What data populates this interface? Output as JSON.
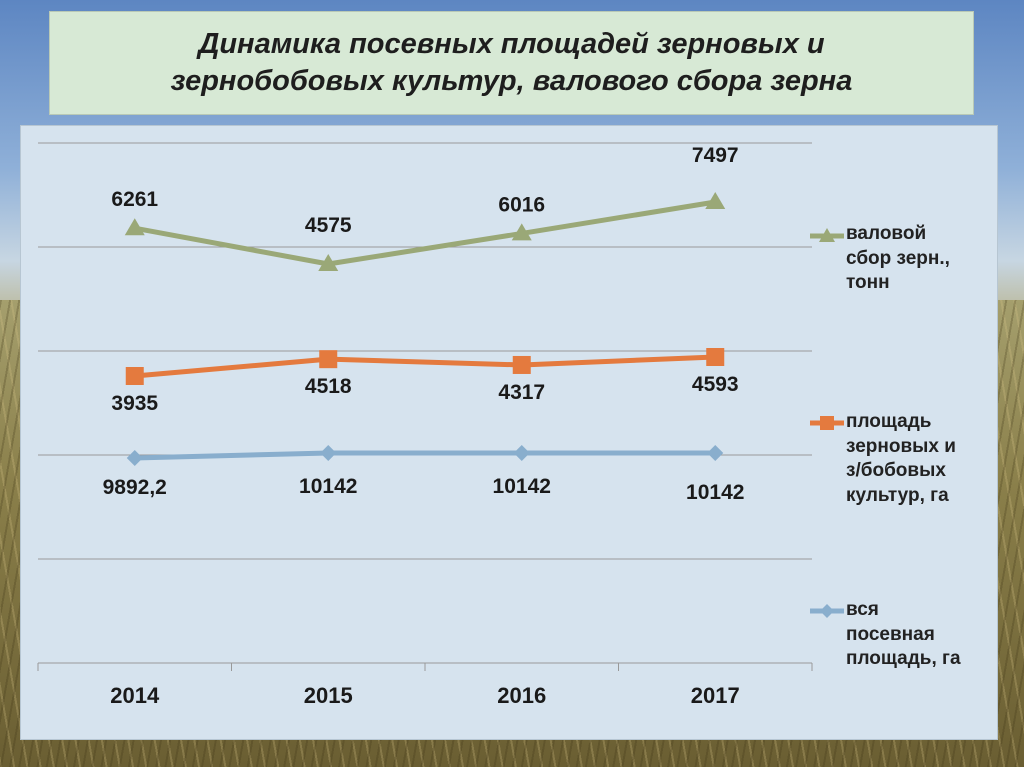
{
  "title": "Динамика посевных площадей зерновых и зернобобовых культур, валового сбора зерна",
  "colors": {
    "harvest": "#9aa877",
    "grain_area": "#e47a3e",
    "total_area": "#89aecd",
    "grid": "#999999",
    "panel": "#d6e3ee",
    "title_box": "#d7e9d5"
  },
  "chart_data": {
    "type": "line",
    "categories": [
      "2014",
      "2015",
      "2016",
      "2017"
    ],
    "grid": true,
    "legend_position": "right",
    "series": [
      {
        "name": "валовой сбор зерн., тонн",
        "marker": "triangle",
        "values": [
          6261,
          4575,
          6016,
          7497
        ],
        "labels": [
          "6261",
          "4575",
          "6016",
          "7497"
        ]
      },
      {
        "name": "площадь зерновых и з/бобовых культур, га",
        "marker": "square",
        "values": [
          3935,
          4518,
          4317,
          4593
        ],
        "labels": [
          "3935",
          "4518",
          "4317",
          "4593"
        ]
      },
      {
        "name": "вся посевная площадь, га",
        "marker": "diamond",
        "values": [
          9892.2,
          10142,
          10142,
          10142
        ],
        "labels": [
          "9892,2",
          "10142",
          "10142",
          "10142"
        ]
      }
    ]
  },
  "legend": [
    {
      "label": "валовой\nсбор зерн.,\nтонн"
    },
    {
      "label": "площадь\nзерновых и\nз/бобовых\nкультур, га"
    },
    {
      "label": "вся\nпосевная\nплощадь, га"
    }
  ]
}
